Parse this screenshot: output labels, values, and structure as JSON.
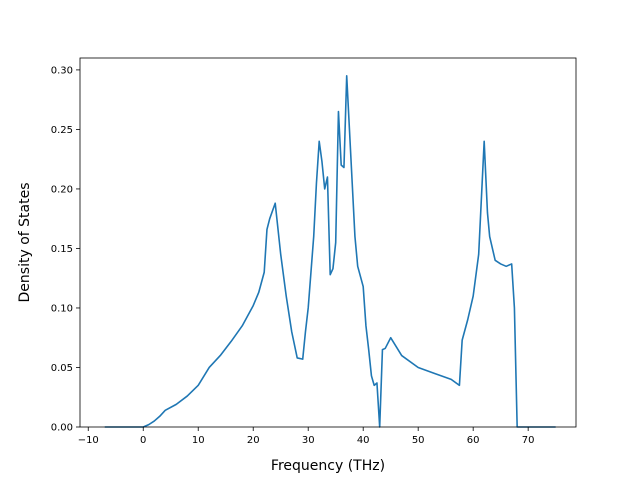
{
  "chart_data": {
    "type": "line",
    "title": "",
    "xlabel": "Frequency (THz)",
    "ylabel": "Density of States",
    "xlim": [
      -11.5,
      78.7
    ],
    "ylim": [
      0.0,
      0.31
    ],
    "xticks": [
      -10,
      0,
      10,
      20,
      30,
      40,
      50,
      60,
      70
    ],
    "xtick_labels": [
      "−10",
      "0",
      "10",
      "20",
      "30",
      "40",
      "50",
      "60",
      "70"
    ],
    "yticks": [
      0.0,
      0.05,
      0.1,
      0.15,
      0.2,
      0.25,
      0.3
    ],
    "ytick_labels": [
      "0.00",
      "0.05",
      "0.10",
      "0.15",
      "0.20",
      "0.25",
      "0.30"
    ],
    "grid": false,
    "line_color": "#1f77b4",
    "series": [
      {
        "x": [
          -7,
          -3,
          0,
          1,
          2,
          3,
          4,
          6,
          8,
          10,
          12,
          14,
          16,
          18,
          20,
          21,
          22,
          22.5,
          23,
          24,
          25,
          26,
          26.5,
          27,
          28,
          29,
          29.5,
          30,
          30.5,
          31,
          31.5,
          32,
          32.5,
          33,
          33.5,
          34,
          34.5,
          35,
          35.5,
          36,
          36.5,
          37,
          38,
          38.5,
          39,
          40,
          40.5,
          41,
          41.5,
          42,
          42.5,
          43,
          43.5,
          44,
          45,
          47,
          50,
          53,
          56,
          57.5,
          58,
          59,
          60,
          61,
          62,
          62.6,
          63,
          64,
          65,
          66,
          67,
          67.5,
          68,
          70,
          75
        ],
        "y": [
          0.0,
          0.0,
          0.0,
          0.002,
          0.005,
          0.009,
          0.014,
          0.019,
          0.026,
          0.035,
          0.05,
          0.06,
          0.072,
          0.085,
          0.102,
          0.113,
          0.13,
          0.166,
          0.175,
          0.188,
          0.145,
          0.11,
          0.095,
          0.08,
          0.058,
          0.057,
          0.08,
          0.1,
          0.13,
          0.16,
          0.205,
          0.24,
          0.223,
          0.2,
          0.21,
          0.128,
          0.133,
          0.155,
          0.265,
          0.22,
          0.218,
          0.295,
          0.205,
          0.16,
          0.135,
          0.118,
          0.085,
          0.065,
          0.043,
          0.035,
          0.037,
          0.0,
          0.065,
          0.066,
          0.075,
          0.06,
          0.05,
          0.045,
          0.04,
          0.035,
          0.073,
          0.09,
          0.11,
          0.145,
          0.24,
          0.18,
          0.16,
          0.14,
          0.137,
          0.135,
          0.137,
          0.1,
          0.0,
          0.0,
          0.0
        ]
      }
    ]
  }
}
